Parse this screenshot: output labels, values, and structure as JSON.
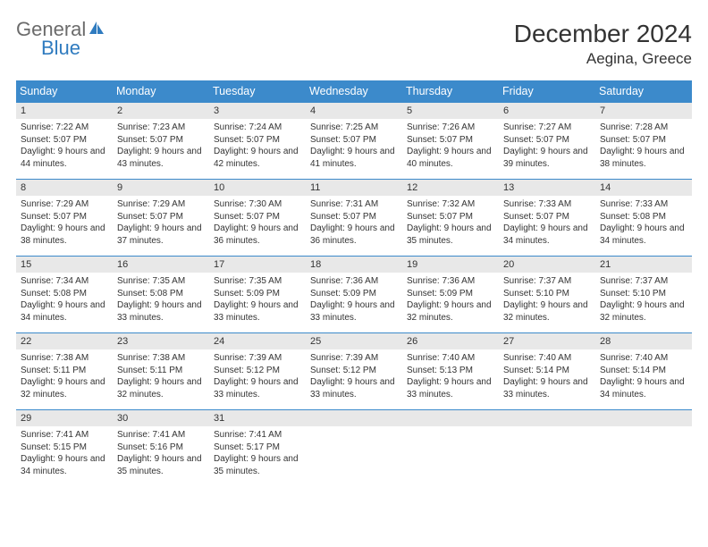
{
  "brand": {
    "word1": "General",
    "word2": "Blue"
  },
  "title": "December 2024",
  "location": "Aegina, Greece",
  "colors": {
    "header_bg": "#3c8acb",
    "header_fg": "#ffffff",
    "row_border": "#3c8acb",
    "daynum_bg": "#e8e8e8",
    "brand_gray": "#6b6b6b",
    "brand_blue": "#2f7bbf"
  },
  "weekdays": [
    "Sunday",
    "Monday",
    "Tuesday",
    "Wednesday",
    "Thursday",
    "Friday",
    "Saturday"
  ],
  "days": [
    {
      "n": 1,
      "sunrise": "7:22 AM",
      "sunset": "5:07 PM",
      "daylight": "9 hours and 44 minutes."
    },
    {
      "n": 2,
      "sunrise": "7:23 AM",
      "sunset": "5:07 PM",
      "daylight": "9 hours and 43 minutes."
    },
    {
      "n": 3,
      "sunrise": "7:24 AM",
      "sunset": "5:07 PM",
      "daylight": "9 hours and 42 minutes."
    },
    {
      "n": 4,
      "sunrise": "7:25 AM",
      "sunset": "5:07 PM",
      "daylight": "9 hours and 41 minutes."
    },
    {
      "n": 5,
      "sunrise": "7:26 AM",
      "sunset": "5:07 PM",
      "daylight": "9 hours and 40 minutes."
    },
    {
      "n": 6,
      "sunrise": "7:27 AM",
      "sunset": "5:07 PM",
      "daylight": "9 hours and 39 minutes."
    },
    {
      "n": 7,
      "sunrise": "7:28 AM",
      "sunset": "5:07 PM",
      "daylight": "9 hours and 38 minutes."
    },
    {
      "n": 8,
      "sunrise": "7:29 AM",
      "sunset": "5:07 PM",
      "daylight": "9 hours and 38 minutes."
    },
    {
      "n": 9,
      "sunrise": "7:29 AM",
      "sunset": "5:07 PM",
      "daylight": "9 hours and 37 minutes."
    },
    {
      "n": 10,
      "sunrise": "7:30 AM",
      "sunset": "5:07 PM",
      "daylight": "9 hours and 36 minutes."
    },
    {
      "n": 11,
      "sunrise": "7:31 AM",
      "sunset": "5:07 PM",
      "daylight": "9 hours and 36 minutes."
    },
    {
      "n": 12,
      "sunrise": "7:32 AM",
      "sunset": "5:07 PM",
      "daylight": "9 hours and 35 minutes."
    },
    {
      "n": 13,
      "sunrise": "7:33 AM",
      "sunset": "5:07 PM",
      "daylight": "9 hours and 34 minutes."
    },
    {
      "n": 14,
      "sunrise": "7:33 AM",
      "sunset": "5:08 PM",
      "daylight": "9 hours and 34 minutes."
    },
    {
      "n": 15,
      "sunrise": "7:34 AM",
      "sunset": "5:08 PM",
      "daylight": "9 hours and 34 minutes."
    },
    {
      "n": 16,
      "sunrise": "7:35 AM",
      "sunset": "5:08 PM",
      "daylight": "9 hours and 33 minutes."
    },
    {
      "n": 17,
      "sunrise": "7:35 AM",
      "sunset": "5:09 PM",
      "daylight": "9 hours and 33 minutes."
    },
    {
      "n": 18,
      "sunrise": "7:36 AM",
      "sunset": "5:09 PM",
      "daylight": "9 hours and 33 minutes."
    },
    {
      "n": 19,
      "sunrise": "7:36 AM",
      "sunset": "5:09 PM",
      "daylight": "9 hours and 32 minutes."
    },
    {
      "n": 20,
      "sunrise": "7:37 AM",
      "sunset": "5:10 PM",
      "daylight": "9 hours and 32 minutes."
    },
    {
      "n": 21,
      "sunrise": "7:37 AM",
      "sunset": "5:10 PM",
      "daylight": "9 hours and 32 minutes."
    },
    {
      "n": 22,
      "sunrise": "7:38 AM",
      "sunset": "5:11 PM",
      "daylight": "9 hours and 32 minutes."
    },
    {
      "n": 23,
      "sunrise": "7:38 AM",
      "sunset": "5:11 PM",
      "daylight": "9 hours and 32 minutes."
    },
    {
      "n": 24,
      "sunrise": "7:39 AM",
      "sunset": "5:12 PM",
      "daylight": "9 hours and 33 minutes."
    },
    {
      "n": 25,
      "sunrise": "7:39 AM",
      "sunset": "5:12 PM",
      "daylight": "9 hours and 33 minutes."
    },
    {
      "n": 26,
      "sunrise": "7:40 AM",
      "sunset": "5:13 PM",
      "daylight": "9 hours and 33 minutes."
    },
    {
      "n": 27,
      "sunrise": "7:40 AM",
      "sunset": "5:14 PM",
      "daylight": "9 hours and 33 minutes."
    },
    {
      "n": 28,
      "sunrise": "7:40 AM",
      "sunset": "5:14 PM",
      "daylight": "9 hours and 34 minutes."
    },
    {
      "n": 29,
      "sunrise": "7:41 AM",
      "sunset": "5:15 PM",
      "daylight": "9 hours and 34 minutes."
    },
    {
      "n": 30,
      "sunrise": "7:41 AM",
      "sunset": "5:16 PM",
      "daylight": "9 hours and 35 minutes."
    },
    {
      "n": 31,
      "sunrise": "7:41 AM",
      "sunset": "5:17 PM",
      "daylight": "9 hours and 35 minutes."
    }
  ],
  "labels": {
    "sunrise": "Sunrise:",
    "sunset": "Sunset:",
    "daylight": "Daylight:"
  },
  "first_weekday_index": 0,
  "trailing_empty": 4
}
